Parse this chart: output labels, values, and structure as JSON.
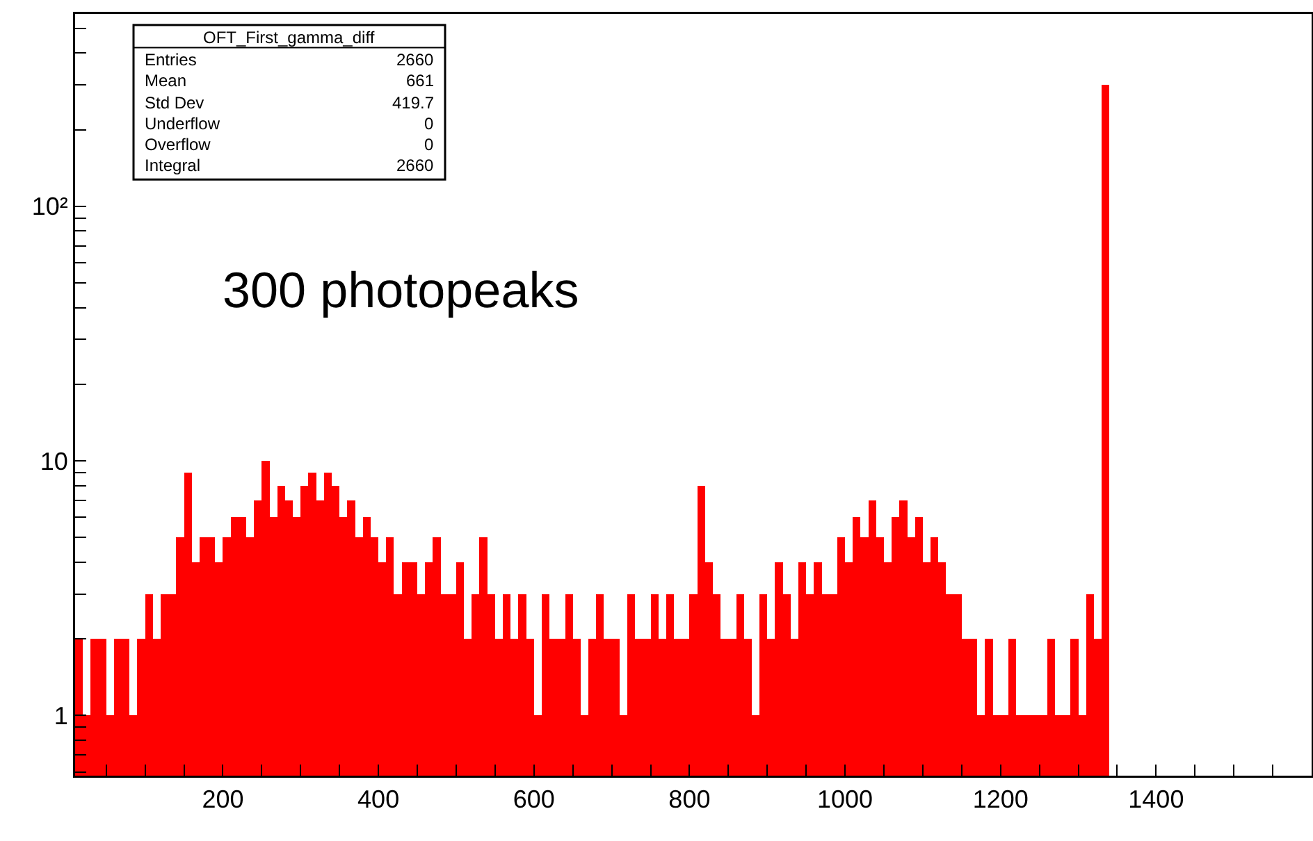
{
  "chart_data": {
    "type": "histogram",
    "bins": [
      10,
      20,
      30,
      40,
      50,
      60,
      70,
      80,
      90,
      100,
      110,
      120,
      130,
      140,
      150,
      160,
      170,
      180,
      190,
      200,
      210,
      220,
      230,
      240,
      250,
      260,
      270,
      280,
      290,
      300,
      310,
      320,
      330,
      340,
      350,
      360,
      370,
      380,
      390,
      400,
      410,
      420,
      430,
      440,
      450,
      460,
      470,
      480,
      490,
      500,
      510,
      520,
      530,
      540,
      550,
      560,
      570,
      580,
      590,
      600,
      610,
      620,
      630,
      640,
      650,
      660,
      670,
      680,
      690,
      700,
      710,
      720,
      730,
      740,
      750,
      760,
      770,
      780,
      790,
      800,
      810,
      820,
      830,
      840,
      850,
      860,
      870,
      880,
      890,
      900,
      910,
      920,
      930,
      940,
      950,
      960,
      970,
      980,
      990,
      1000,
      1010,
      1020,
      1030,
      1040,
      1050,
      1060,
      1070,
      1080,
      1090,
      1100,
      1110,
      1120,
      1130,
      1140,
      1150,
      1160,
      1170,
      1180,
      1190,
      1200,
      1210,
      1220,
      1230,
      1240,
      1250,
      1260,
      1270,
      1280,
      1290,
      1300,
      1310,
      1320,
      1330,
      1340,
      1350,
      1360,
      1370,
      1380,
      1390,
      1400,
      1410,
      1420,
      1430,
      1440,
      1450,
      1460,
      1470,
      1480,
      1490,
      1500,
      1510,
      1520,
      1530,
      1540,
      1550,
      1560,
      1570,
      1580,
      1590,
      1600
    ],
    "values": [
      2,
      1,
      2,
      2,
      1,
      2,
      2,
      1,
      2,
      3,
      2,
      3,
      3,
      5,
      9,
      4,
      5,
      5,
      4,
      5,
      6,
      6,
      5,
      7,
      10,
      6,
      8,
      7,
      6,
      8,
      9,
      7,
      9,
      8,
      6,
      7,
      5,
      6,
      5,
      4,
      5,
      3,
      4,
      4,
      3,
      4,
      5,
      3,
      3,
      4,
      2,
      3,
      5,
      3,
      2,
      3,
      2,
      3,
      2,
      1,
      3,
      2,
      2,
      3,
      2,
      1,
      2,
      3,
      2,
      2,
      1,
      3,
      2,
      2,
      3,
      2,
      3,
      2,
      2,
      3,
      8,
      4,
      3,
      2,
      2,
      3,
      2,
      1,
      3,
      2,
      4,
      3,
      2,
      4,
      3,
      4,
      3,
      3,
      5,
      4,
      6,
      5,
      7,
      5,
      4,
      6,
      7,
      5,
      6,
      4,
      5,
      4,
      3,
      3,
      2,
      2,
      1,
      2,
      1,
      1,
      2,
      1,
      1,
      1,
      1,
      2,
      1,
      1,
      2,
      1,
      3,
      2,
      300,
      null,
      null,
      null,
      null,
      null,
      null,
      null,
      null,
      null,
      null,
      null,
      null,
      null,
      null,
      null,
      null,
      null,
      null,
      null,
      null,
      null,
      null,
      null,
      null,
      null,
      null
    ],
    "color": "#ff0000",
    "log": "y",
    "xlim": [
      10,
      1600
    ],
    "ylim": [
      0.58,
      570
    ],
    "xticks": [
      {
        "value": 50,
        "label": null
      },
      {
        "value": 100,
        "label": null
      },
      {
        "value": 150,
        "label": null
      },
      200,
      {
        "value": 250,
        "label": null
      },
      {
        "value": 300,
        "label": null
      },
      {
        "value": 350,
        "label": null
      },
      400,
      {
        "value": 450,
        "label": null
      },
      {
        "value": 500,
        "label": null
      },
      {
        "value": 550,
        "label": null
      },
      600,
      {
        "value": 650,
        "label": null
      },
      {
        "value": 700,
        "label": null
      },
      {
        "value": 750,
        "label": null
      },
      800,
      {
        "value": 850,
        "label": null
      },
      {
        "value": 900,
        "label": null
      },
      {
        "value": 950,
        "label": null
      },
      1000,
      {
        "value": 1050,
        "label": null
      },
      {
        "value": 1100,
        "label": null
      },
      {
        "value": 1150,
        "label": null
      },
      1200,
      {
        "value": 1250,
        "label": null
      },
      {
        "value": 1300,
        "label": null
      },
      {
        "value": 1350,
        "label": null
      },
      1400,
      {
        "value": 1450,
        "label": null
      },
      {
        "value": 1500,
        "label": null
      },
      {
        "value": 1550,
        "label": null
      }
    ],
    "yticks": [
      {
        "value": 0.6,
        "label": null
      },
      {
        "value": 0.7,
        "label": null
      },
      {
        "value": 0.8,
        "label": null
      },
      {
        "value": 0.9,
        "label": null
      },
      1,
      {
        "value": 2,
        "label": null
      },
      {
        "value": 3,
        "label": null
      },
      {
        "value": 4,
        "label": null
      },
      {
        "value": 5,
        "label": null
      },
      {
        "value": 6,
        "label": null
      },
      {
        "value": 7,
        "label": null
      },
      {
        "value": 8,
        "label": null
      },
      {
        "value": 9,
        "label": null
      },
      10,
      {
        "value": 20,
        "label": null
      },
      {
        "value": 30,
        "label": null
      },
      {
        "value": 40,
        "label": null
      },
      {
        "value": 50,
        "label": null
      },
      {
        "value": 60,
        "label": null
      },
      {
        "value": 70,
        "label": null
      },
      {
        "value": 80,
        "label": null
      },
      {
        "value": 90,
        "label": null
      },
      {
        "value": 100,
        "label": "10²"
      },
      {
        "value": 200,
        "label": null
      },
      {
        "value": 300,
        "label": null
      },
      {
        "value": 400,
        "label": null
      },
      {
        "value": 500,
        "label": null
      }
    ],
    "grid": false,
    "annotations": [
      "300 photopeaks",
      "OFT_First_gamma_diff",
      "Entries",
      "2660",
      "Mean",
      "661",
      "Std Dev",
      "419.7",
      "Underflow",
      "0",
      "Overflow",
      "0",
      "Integral",
      "2660"
    ]
  }
}
